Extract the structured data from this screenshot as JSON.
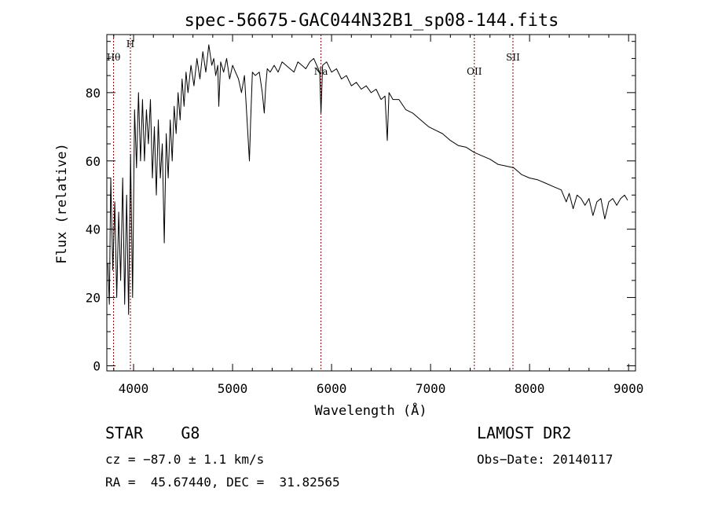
{
  "chart_data": {
    "type": "line",
    "title": "spec-56675-GAC044N32B1_sp08-144.fits",
    "xlabel": "Wavelength (Å)",
    "ylabel": "Flux (relative)",
    "xlim": [
      3730,
      9070
    ],
    "ylim": [
      -1.5,
      97
    ],
    "xticks": [
      "4000",
      "5000",
      "6000",
      "7000",
      "8000",
      "9000"
    ],
    "yticks": [
      "0",
      "20",
      "40",
      "60",
      "80"
    ],
    "series": [
      {
        "x": [
          3740,
          3755,
          3770,
          3790,
          3810,
          3830,
          3850,
          3870,
          3890,
          3910,
          3930,
          3950,
          3970,
          3990,
          4010,
          4030,
          4050,
          4070,
          4090,
          4110,
          4130,
          4150,
          4170,
          4190,
          4210,
          4230,
          4250,
          4270,
          4290,
          4310,
          4330,
          4350,
          4370,
          4390,
          4410,
          4430,
          4450,
          4470,
          4490,
          4510,
          4530,
          4550,
          4580,
          4610,
          4640,
          4670,
          4700,
          4730,
          4760,
          4790,
          4810,
          4830,
          4850,
          4861,
          4880,
          4910,
          4940,
          4970,
          5000,
          5030,
          5060,
          5090,
          5120,
          5150,
          5170,
          5183,
          5200,
          5230,
          5270,
          5300,
          5320,
          5335,
          5350,
          5380,
          5420,
          5460,
          5500,
          5540,
          5580,
          5620,
          5660,
          5700,
          5740,
          5780,
          5820,
          5850,
          5880,
          5893,
          5910,
          5950,
          6000,
          6050,
          6100,
          6150,
          6200,
          6250,
          6300,
          6350,
          6400,
          6450,
          6500,
          6540,
          6563,
          6580,
          6620,
          6680,
          6750,
          6820,
          6900,
          6980,
          7050,
          7120,
          7200,
          7280,
          7360,
          7440,
          7520,
          7600,
          7680,
          7760,
          7840,
          7920,
          8000,
          8080,
          8160,
          8240,
          8320,
          8370,
          8400,
          8440,
          8480,
          8520,
          8560,
          8600,
          8640,
          8680,
          8720,
          8760,
          8800,
          8840,
          8880,
          8920,
          8960,
          8990
        ],
        "y": [
          30,
          18,
          55,
          28,
          48,
          20,
          45,
          25,
          55,
          18,
          50,
          15,
          62,
          20,
          75,
          58,
          80,
          60,
          78,
          60,
          75,
          65,
          78,
          55,
          70,
          50,
          72,
          55,
          65,
          36,
          68,
          55,
          72,
          60,
          76,
          68,
          80,
          72,
          84,
          76,
          86,
          80,
          88,
          82,
          90,
          84,
          92,
          86,
          94,
          88,
          90,
          85,
          88,
          76,
          89,
          86,
          90,
          84,
          88,
          86,
          84,
          80,
          85,
          70,
          60,
          72,
          86,
          85,
          86,
          80,
          74,
          82,
          87,
          86,
          88,
          86,
          89,
          88,
          87,
          86,
          89,
          88,
          87,
          89,
          90,
          88,
          86,
          74,
          88,
          89,
          86,
          87,
          84,
          85,
          82,
          83,
          81,
          82,
          80,
          81,
          78,
          79,
          66,
          80,
          78,
          78,
          75,
          74,
          72,
          70,
          69,
          68,
          66,
          64.5,
          64,
          62.5,
          61.5,
          60.5,
          59,
          58.5,
          58,
          56,
          55,
          54.5,
          53.5,
          52.5,
          51.5,
          48,
          50.5,
          46,
          50,
          49,
          47,
          49,
          44,
          48,
          49,
          43,
          48,
          49,
          47,
          49,
          50,
          48.5
        ]
      }
    ],
    "spectral_lines": [
      {
        "name": "Hθ",
        "x": 3798
      },
      {
        "name": "H",
        "x": 3968
      },
      {
        "name": "Na",
        "x": 5893
      },
      {
        "name": "OII",
        "x": 7442
      },
      {
        "name": "SII",
        "x": 7832
      }
    ],
    "info": {
      "classification": "STAR    G8",
      "cz": "cz = −87.0 ± 1.1 km/s",
      "radec": "RA =  45.67440, DEC =  31.82565",
      "survey": "LAMOST DR2",
      "obs_date": "Obs−Date: 20140117"
    }
  }
}
